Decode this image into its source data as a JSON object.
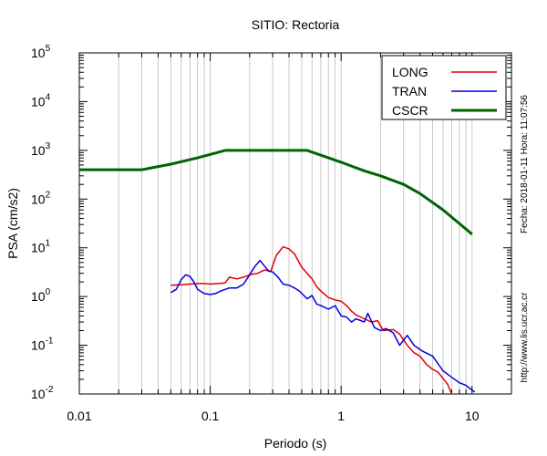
{
  "chart_data": {
    "type": "line",
    "title": "SITIO: Rectoria",
    "xlabel": "Periodo (s)",
    "ylabel": "PSA (cm/s2)",
    "x_scale": "log",
    "y_scale": "log",
    "xlim": [
      0.01,
      20
    ],
    "ylim": [
      0.01,
      100000
    ],
    "x_ticks": [
      {
        "value": 0.01,
        "label": "0.01"
      },
      {
        "value": 0.1,
        "label": "0.1"
      },
      {
        "value": 1,
        "label": "1"
      },
      {
        "value": 10,
        "label": "10"
      }
    ],
    "y_ticks": [
      {
        "value": 0.01,
        "base": "10",
        "exp": "-2"
      },
      {
        "value": 0.1,
        "base": "10",
        "exp": "-1"
      },
      {
        "value": 1,
        "base": "10",
        "exp": "0"
      },
      {
        "value": 10,
        "base": "10",
        "exp": "1"
      },
      {
        "value": 100,
        "base": "10",
        "exp": "2"
      },
      {
        "value": 1000,
        "base": "10",
        "exp": "3"
      },
      {
        "value": 10000,
        "base": "10",
        "exp": "4"
      },
      {
        "value": 100000,
        "base": "10",
        "exp": "5"
      }
    ],
    "grid": "vertical-minor",
    "legend_position": "top-right",
    "series": [
      {
        "name": "LONG",
        "color": "#e00000",
        "points": [
          [
            0.05,
            1.7
          ],
          [
            0.06,
            1.75
          ],
          [
            0.07,
            1.8
          ],
          [
            0.08,
            1.85
          ],
          [
            0.09,
            1.85
          ],
          [
            0.1,
            1.8
          ],
          [
            0.115,
            1.85
          ],
          [
            0.13,
            1.9
          ],
          [
            0.14,
            2.5
          ],
          [
            0.16,
            2.3
          ],
          [
            0.18,
            2.5
          ],
          [
            0.2,
            2.8
          ],
          [
            0.23,
            3.0
          ],
          [
            0.26,
            3.5
          ],
          [
            0.29,
            3.3
          ],
          [
            0.32,
            7.0
          ],
          [
            0.36,
            10.5
          ],
          [
            0.4,
            9.5
          ],
          [
            0.44,
            7.5
          ],
          [
            0.5,
            4.0
          ],
          [
            0.55,
            3.0
          ],
          [
            0.6,
            2.3
          ],
          [
            0.65,
            1.6
          ],
          [
            0.7,
            1.3
          ],
          [
            0.8,
            0.95
          ],
          [
            0.9,
            0.85
          ],
          [
            1.0,
            0.8
          ],
          [
            1.1,
            0.65
          ],
          [
            1.2,
            0.5
          ],
          [
            1.3,
            0.42
          ],
          [
            1.5,
            0.35
          ],
          [
            1.7,
            0.3
          ],
          [
            1.9,
            0.32
          ],
          [
            2.1,
            0.2
          ],
          [
            2.5,
            0.21
          ],
          [
            2.8,
            0.17
          ],
          [
            3.2,
            0.1
          ],
          [
            3.6,
            0.07
          ],
          [
            4.0,
            0.06
          ],
          [
            4.5,
            0.04
          ],
          [
            5.0,
            0.032
          ],
          [
            5.5,
            0.028
          ],
          [
            6.0,
            0.021
          ],
          [
            6.5,
            0.016
          ],
          [
            7.0,
            0.01
          ]
        ]
      },
      {
        "name": "TRAN",
        "color": "#0000e0",
        "points": [
          [
            0.05,
            1.2
          ],
          [
            0.055,
            1.4
          ],
          [
            0.06,
            2.2
          ],
          [
            0.065,
            2.8
          ],
          [
            0.07,
            2.6
          ],
          [
            0.075,
            2.0
          ],
          [
            0.08,
            1.4
          ],
          [
            0.09,
            1.15
          ],
          [
            0.1,
            1.1
          ],
          [
            0.11,
            1.15
          ],
          [
            0.12,
            1.3
          ],
          [
            0.14,
            1.5
          ],
          [
            0.16,
            1.5
          ],
          [
            0.18,
            1.8
          ],
          [
            0.2,
            2.8
          ],
          [
            0.22,
            4.2
          ],
          [
            0.24,
            5.5
          ],
          [
            0.26,
            4.2
          ],
          [
            0.28,
            3.3
          ],
          [
            0.3,
            3.2
          ],
          [
            0.33,
            2.5
          ],
          [
            0.36,
            1.8
          ],
          [
            0.4,
            1.7
          ],
          [
            0.44,
            1.5
          ],
          [
            0.48,
            1.3
          ],
          [
            0.55,
            0.9
          ],
          [
            0.6,
            1.05
          ],
          [
            0.65,
            0.7
          ],
          [
            0.7,
            0.65
          ],
          [
            0.8,
            0.55
          ],
          [
            0.9,
            0.65
          ],
          [
            1.0,
            0.4
          ],
          [
            1.1,
            0.38
          ],
          [
            1.2,
            0.3
          ],
          [
            1.3,
            0.35
          ],
          [
            1.5,
            0.3
          ],
          [
            1.6,
            0.45
          ],
          [
            1.8,
            0.23
          ],
          [
            2.0,
            0.2
          ],
          [
            2.2,
            0.22
          ],
          [
            2.5,
            0.18
          ],
          [
            2.8,
            0.1
          ],
          [
            3.2,
            0.16
          ],
          [
            3.6,
            0.1
          ],
          [
            4.2,
            0.075
          ],
          [
            5.0,
            0.06
          ],
          [
            6.0,
            0.03
          ],
          [
            7.0,
            0.022
          ],
          [
            8.0,
            0.017
          ],
          [
            9.0,
            0.015
          ],
          [
            10.0,
            0.012
          ],
          [
            10.5,
            0.011
          ]
        ]
      },
      {
        "name": "CSCR",
        "color": "#006400",
        "points": [
          [
            0.01,
            400
          ],
          [
            0.03,
            400
          ],
          [
            0.05,
            520
          ],
          [
            0.08,
            700
          ],
          [
            0.13,
            1000
          ],
          [
            0.55,
            1000
          ],
          [
            0.8,
            700
          ],
          [
            1.0,
            570
          ],
          [
            1.5,
            380
          ],
          [
            2.0,
            300
          ],
          [
            3.0,
            200
          ],
          [
            4.0,
            130
          ],
          [
            6.0,
            60
          ],
          [
            10.0,
            19
          ]
        ]
      }
    ],
    "side_text": {
      "fecha": "Fecha: 2018-01-11  Hora: 11:07:56",
      "url": "http://www.lis.ucr.ac.cr"
    }
  }
}
